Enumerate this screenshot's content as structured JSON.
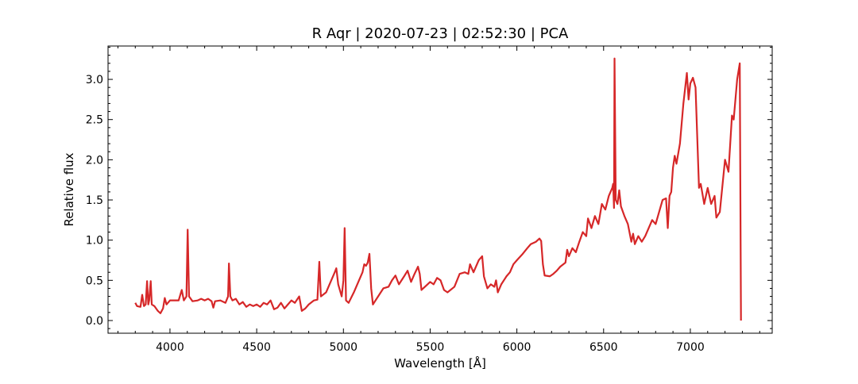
{
  "chart_data": {
    "type": "line",
    "title": "R Aqr | 2020-07-23 | 02:52:30 | PCA",
    "xlabel": "Wavelength [Å]",
    "ylabel": "Relative flux",
    "color": "#d62728",
    "x": [
      3800,
      3810,
      3830,
      3840,
      3850,
      3860,
      3868,
      3875,
      3880,
      3889,
      3895,
      3910,
      3930,
      3945,
      3960,
      3970,
      3980,
      4000,
      4030,
      4050,
      4068,
      4080,
      4095,
      4102,
      4110,
      4130,
      4160,
      4180,
      4200,
      4220,
      4240,
      4250,
      4260,
      4290,
      4320,
      4335,
      4340,
      4348,
      4360,
      4380,
      4400,
      4420,
      4440,
      4460,
      4480,
      4500,
      4520,
      4540,
      4560,
      4580,
      4600,
      4620,
      4640,
      4660,
      4680,
      4700,
      4720,
      4745,
      4760,
      4780,
      4800,
      4830,
      4850,
      4861,
      4870,
      4900,
      4930,
      4950,
      4959,
      4970,
      4990,
      5000,
      5007,
      5015,
      5030,
      5060,
      5090,
      5110,
      5120,
      5130,
      5140,
      5150,
      5160,
      5170,
      5200,
      5230,
      5260,
      5280,
      5300,
      5320,
      5350,
      5370,
      5390,
      5410,
      5430,
      5440,
      5450,
      5480,
      5500,
      5520,
      5540,
      5560,
      5580,
      5600,
      5640,
      5670,
      5700,
      5720,
      5730,
      5750,
      5780,
      5800,
      5810,
      5830,
      5850,
      5870,
      5880,
      5890,
      5910,
      5940,
      5960,
      5980,
      6000,
      6030,
      6060,
      6080,
      6110,
      6130,
      6140,
      6150,
      6160,
      6190,
      6210,
      6230,
      6250,
      6280,
      6290,
      6300,
      6320,
      6340,
      6360,
      6380,
      6400,
      6410,
      6430,
      6450,
      6470,
      6490,
      6510,
      6530,
      6550,
      6555,
      6560,
      6563,
      6570,
      6580,
      6590,
      6600,
      6620,
      6640,
      6660,
      6670,
      6680,
      6700,
      6720,
      6740,
      6760,
      6780,
      6800,
      6820,
      6840,
      6860,
      6870,
      6880,
      6890,
      6900,
      6910,
      6920,
      6940,
      6960,
      6980,
      6990,
      7000,
      7015,
      7030,
      7050,
      7060,
      7080,
      7100,
      7120,
      7140,
      7150,
      7170,
      7200,
      7220,
      7240,
      7250,
      7270,
      7285,
      7292
    ],
    "values": [
      0.22,
      0.18,
      0.17,
      0.32,
      0.18,
      0.2,
      0.49,
      0.2,
      0.25,
      0.49,
      0.2,
      0.18,
      0.12,
      0.09,
      0.15,
      0.28,
      0.2,
      0.25,
      0.25,
      0.25,
      0.38,
      0.25,
      0.3,
      1.13,
      0.3,
      0.24,
      0.25,
      0.27,
      0.25,
      0.27,
      0.24,
      0.16,
      0.24,
      0.25,
      0.22,
      0.3,
      0.71,
      0.3,
      0.25,
      0.27,
      0.2,
      0.23,
      0.17,
      0.2,
      0.18,
      0.2,
      0.17,
      0.22,
      0.2,
      0.25,
      0.14,
      0.16,
      0.22,
      0.15,
      0.2,
      0.25,
      0.22,
      0.3,
      0.12,
      0.15,
      0.2,
      0.25,
      0.26,
      0.73,
      0.3,
      0.35,
      0.5,
      0.6,
      0.65,
      0.45,
      0.3,
      0.5,
      1.15,
      0.25,
      0.22,
      0.35,
      0.5,
      0.6,
      0.7,
      0.68,
      0.72,
      0.83,
      0.4,
      0.2,
      0.3,
      0.4,
      0.42,
      0.5,
      0.56,
      0.45,
      0.55,
      0.62,
      0.48,
      0.58,
      0.67,
      0.58,
      0.38,
      0.44,
      0.48,
      0.45,
      0.53,
      0.5,
      0.38,
      0.35,
      0.42,
      0.58,
      0.6,
      0.58,
      0.7,
      0.6,
      0.75,
      0.8,
      0.55,
      0.4,
      0.45,
      0.42,
      0.5,
      0.35,
      0.45,
      0.55,
      0.6,
      0.7,
      0.75,
      0.82,
      0.9,
      0.95,
      0.98,
      1.02,
      0.99,
      0.7,
      0.56,
      0.55,
      0.58,
      0.62,
      0.67,
      0.72,
      0.88,
      0.8,
      0.9,
      0.85,
      0.98,
      1.1,
      1.05,
      1.27,
      1.15,
      1.3,
      1.2,
      1.45,
      1.38,
      1.55,
      1.65,
      1.7,
      1.4,
      3.26,
      1.5,
      1.45,
      1.62,
      1.42,
      1.3,
      1.2,
      0.98,
      1.08,
      0.95,
      1.05,
      0.98,
      1.05,
      1.15,
      1.25,
      1.2,
      1.35,
      1.5,
      1.52,
      1.15,
      1.55,
      1.6,
      1.9,
      2.05,
      1.95,
      2.2,
      2.7,
      3.08,
      2.75,
      2.95,
      3.02,
      2.9,
      1.65,
      1.7,
      1.45,
      1.65,
      1.45,
      1.55,
      1.28,
      1.35,
      2.0,
      1.85,
      2.55,
      2.5,
      3.0,
      3.2,
      0.0
    ],
    "xlim": [
      3643,
      7472
    ],
    "ylim": [
      -0.158,
      3.415
    ],
    "xticks": [
      4000,
      4500,
      5000,
      5500,
      6000,
      6500,
      7000
    ],
    "yticks": [
      {
        "value": 0,
        "label": "0.0"
      },
      {
        "value": 0.5,
        "label": "0.5"
      },
      {
        "value": 1,
        "label": "1.0"
      },
      {
        "value": 1.5,
        "label": "1.5"
      },
      {
        "value": 2,
        "label": "2.0"
      },
      {
        "value": 2.5,
        "label": "2.5"
      },
      {
        "value": 3,
        "label": "3.0"
      }
    ],
    "xminorticks": [
      3700,
      3800,
      3900,
      4100,
      4200,
      4300,
      4400,
      4600,
      4700,
      4800,
      4900,
      5100,
      5200,
      5300,
      5400,
      5600,
      5700,
      5800,
      5900,
      6100,
      6200,
      6300,
      6400,
      6600,
      6700,
      6800,
      6900,
      7100,
      7200,
      7300,
      7400
    ],
    "yminorticks": [
      -0.1,
      0.1,
      0.2,
      0.3,
      0.4,
      0.6,
      0.7,
      0.8,
      0.9,
      1.1,
      1.2,
      1.3,
      1.4,
      1.6,
      1.7,
      1.8,
      1.9,
      2.1,
      2.2,
      2.3,
      2.4,
      2.6,
      2.7,
      2.8,
      2.9,
      3.1,
      3.2,
      3.3,
      3.4
    ]
  }
}
